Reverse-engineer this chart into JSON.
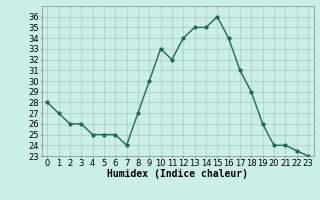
{
  "x": [
    0,
    1,
    2,
    3,
    4,
    5,
    6,
    7,
    8,
    9,
    10,
    11,
    12,
    13,
    14,
    15,
    16,
    17,
    18,
    19,
    20,
    21,
    22,
    23
  ],
  "y": [
    28,
    27,
    26,
    26,
    25,
    25,
    25,
    24,
    27,
    30,
    33,
    32,
    34,
    35,
    35,
    36,
    34,
    31,
    29,
    26,
    24,
    24,
    23.5,
    23
  ],
  "line_color": "#1a6b5a",
  "marker": "o",
  "marker_size": 2,
  "line_width": 1.0,
  "bg_color": "#cceee8",
  "grid_color": "#aaccbb",
  "xlabel": "Humidex (Indice chaleur)",
  "xlabel_fontsize": 7,
  "tick_fontsize": 6,
  "ylim": [
    23,
    37
  ],
  "yticks": [
    23,
    24,
    25,
    26,
    27,
    28,
    29,
    30,
    31,
    32,
    33,
    34,
    35,
    36
  ],
  "xlim": [
    -0.5,
    23.5
  ],
  "xticks": [
    0,
    1,
    2,
    3,
    4,
    5,
    6,
    7,
    8,
    9,
    10,
    11,
    12,
    13,
    14,
    15,
    16,
    17,
    18,
    19,
    20,
    21,
    22,
    23
  ]
}
